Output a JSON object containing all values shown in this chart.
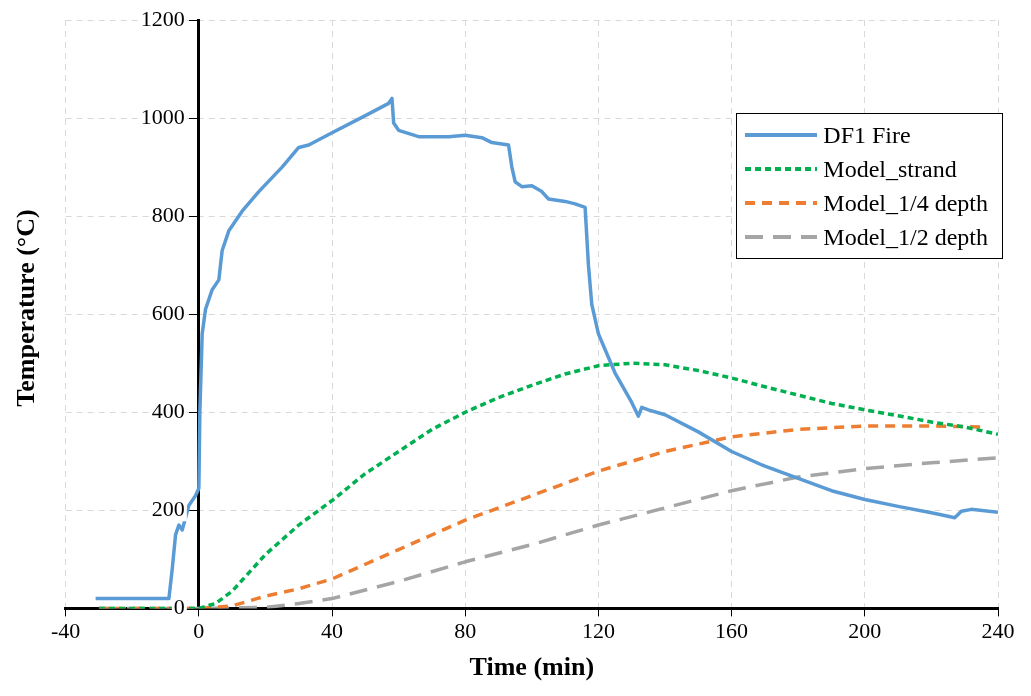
{
  "chart_data": {
    "type": "line",
    "xlabel": "Time (min)",
    "ylabel": "Temperature (°C)",
    "xlim": [
      -40,
      240
    ],
    "xticks": [
      -40,
      0,
      40,
      80,
      120,
      160,
      200,
      240
    ],
    "ylim": [
      0,
      1200
    ],
    "yticks": [
      0,
      200,
      400,
      600,
      800,
      1000,
      1200
    ],
    "grid": true,
    "legend": "top right",
    "marker": "none",
    "series": [
      {
        "name": "DF1 Fire",
        "color": "#5b9bd5",
        "line_style": "solid",
        "x": [
          -31,
          -9,
          -8,
          -7,
          -6,
          -5,
          -4,
          -3,
          -1,
          0,
          0.3,
          1,
          2,
          4,
          6,
          7,
          9,
          13,
          18,
          25,
          30,
          33,
          40,
          50,
          57,
          58,
          58.5,
          60,
          66,
          75,
          80,
          85,
          88,
          93,
          94,
          95,
          97,
          100,
          103,
          105,
          110,
          113,
          116,
          117,
          118,
          120,
          125,
          130,
          132,
          133,
          135,
          140,
          150,
          160,
          170,
          180,
          190,
          200,
          210,
          220,
          225,
          227,
          229,
          232,
          240
        ],
        "values": [
          20,
          20,
          80,
          150,
          170,
          160,
          185,
          210,
          230,
          245,
          400,
          560,
          610,
          650,
          670,
          730,
          770,
          810,
          850,
          900,
          940,
          945,
          970,
          1005,
          1030,
          1040,
          990,
          975,
          962,
          962,
          965,
          960,
          950,
          945,
          900,
          870,
          860,
          862,
          850,
          835,
          830,
          825,
          818,
          700,
          620,
          560,
          480,
          420,
          392,
          410,
          405,
          395,
          360,
          320,
          290,
          265,
          240,
          222,
          208,
          195,
          188,
          185,
          198,
          202,
          196
        ]
      },
      {
        "name": "Model_strand",
        "color": "#00b050",
        "line_style": "dotted",
        "x": [
          -30,
          0,
          5,
          10,
          20,
          30,
          40,
          50,
          60,
          70,
          80,
          90,
          100,
          110,
          120,
          130,
          140,
          150,
          160,
          170,
          180,
          190,
          200,
          210,
          220,
          230,
          240
        ],
        "values": [
          0,
          0,
          10,
          35,
          110,
          170,
          220,
          275,
          320,
          365,
          400,
          430,
          455,
          478,
          495,
          500,
          497,
          485,
          470,
          452,
          435,
          418,
          405,
          393,
          380,
          370,
          355
        ]
      },
      {
        "name": "Model_1/4 depth",
        "color": "#ed7d31",
        "line_style": "dashed",
        "x": [
          -30,
          0,
          10,
          20,
          30,
          40,
          60,
          80,
          100,
          120,
          140,
          160,
          180,
          200,
          220,
          235
        ],
        "values": [
          0,
          0,
          5,
          25,
          40,
          60,
          120,
          180,
          230,
          280,
          320,
          350,
          365,
          372,
          372,
          370
        ]
      },
      {
        "name": "Model_1/2 depth",
        "color": "#a5a5a5",
        "line_style": "longdash",
        "x": [
          -30,
          0,
          20,
          30,
          40,
          60,
          80,
          100,
          120,
          140,
          160,
          180,
          200,
          220,
          240
        ],
        "values": [
          0,
          0,
          2,
          10,
          20,
          55,
          95,
          130,
          170,
          205,
          240,
          268,
          285,
          297,
          307
        ]
      }
    ]
  }
}
